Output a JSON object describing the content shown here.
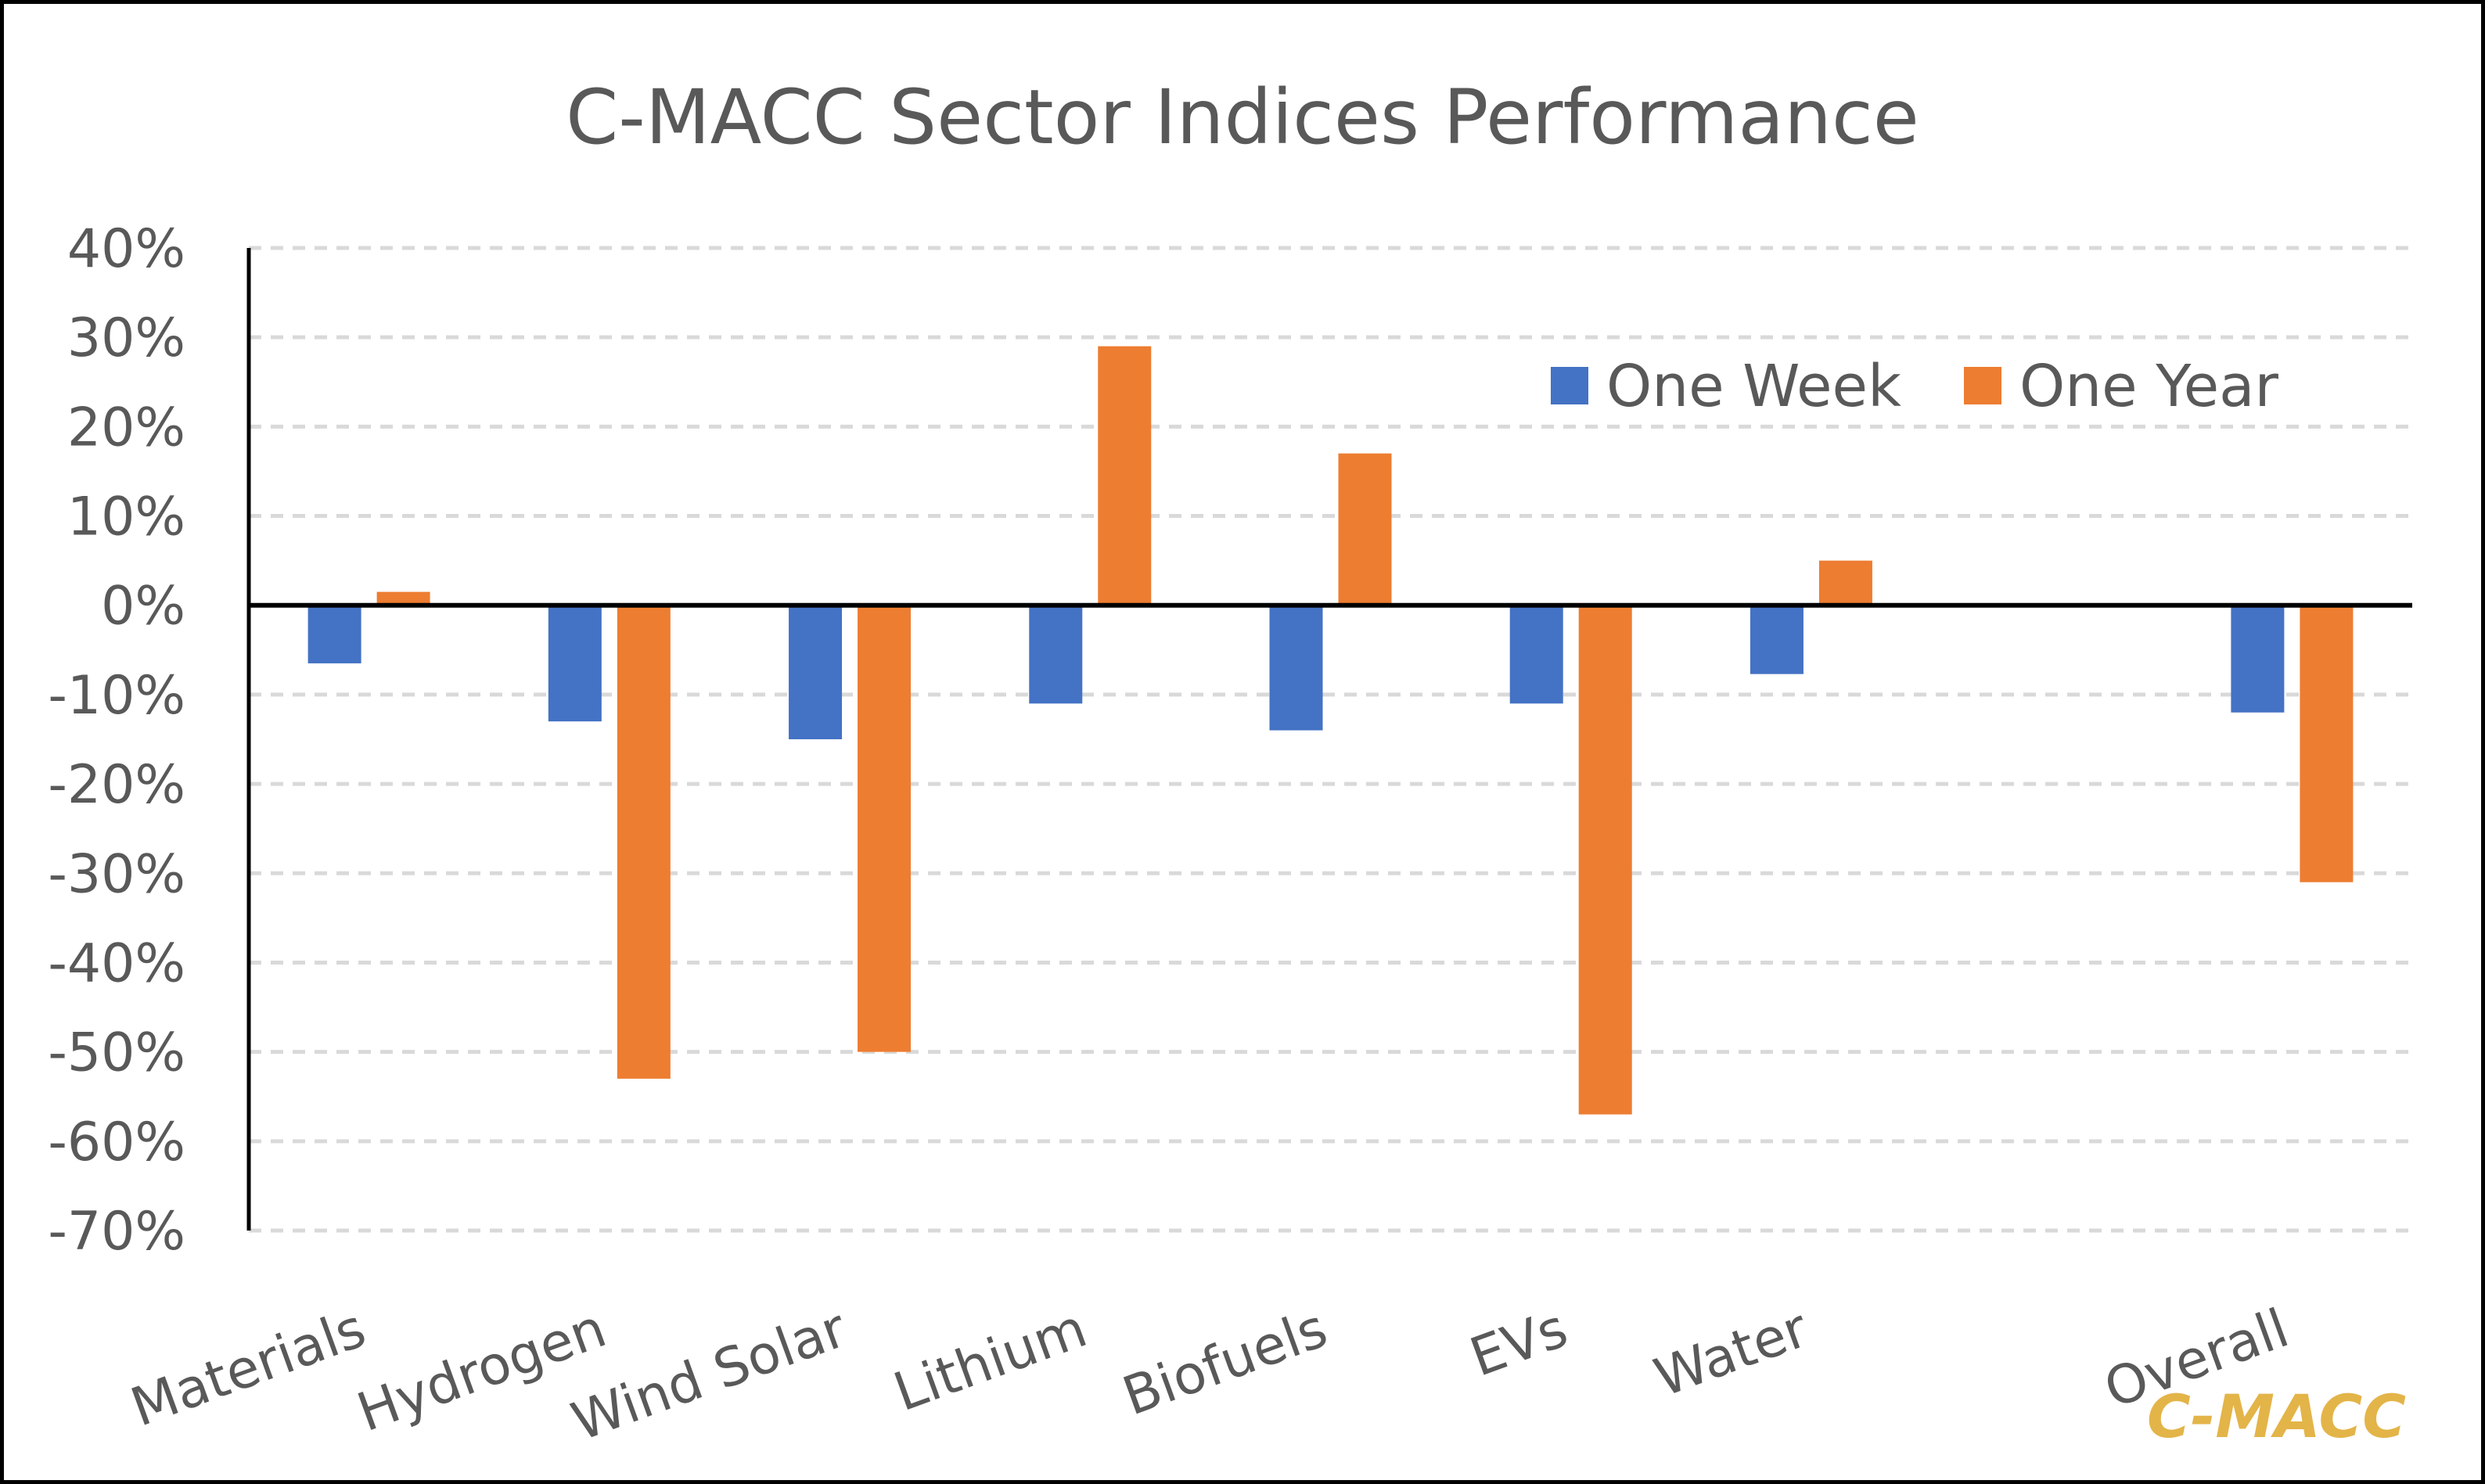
{
  "chart_data": {
    "type": "bar",
    "title": "C-MACC Sector Indices Performance",
    "xlabel": "",
    "ylabel": "",
    "categories": [
      "Materials",
      "Hydrogen",
      "Wind Solar",
      "Lithium",
      "Biofuels",
      "EVs",
      "Water",
      "",
      "Overall"
    ],
    "series": [
      {
        "name": "One Week",
        "color": "#4472C4",
        "values": [
          -6.5,
          -13,
          -15,
          -11,
          -14,
          -11,
          -7.7,
          null,
          -12
        ]
      },
      {
        "name": "One Year",
        "color": "#ED7D31",
        "values": [
          1.5,
          -53,
          -50,
          29,
          17,
          -57,
          5,
          null,
          -31
        ]
      }
    ],
    "ylim": [
      -70,
      40
    ],
    "yticks": [
      40,
      30,
      20,
      10,
      0,
      -10,
      -20,
      -30,
      -40,
      -50,
      -60,
      -70
    ],
    "ytick_labels": [
      "40%",
      "30%",
      "20%",
      "10%",
      "0%",
      "-10%",
      "-20%",
      "-30%",
      "-40%",
      "-50%",
      "-60%",
      "-70%"
    ],
    "grid": true,
    "grid_style": "dashed",
    "legend_position": "top-right"
  },
  "watermark": {
    "text": "C-MACC",
    "color": "#E3B448"
  }
}
